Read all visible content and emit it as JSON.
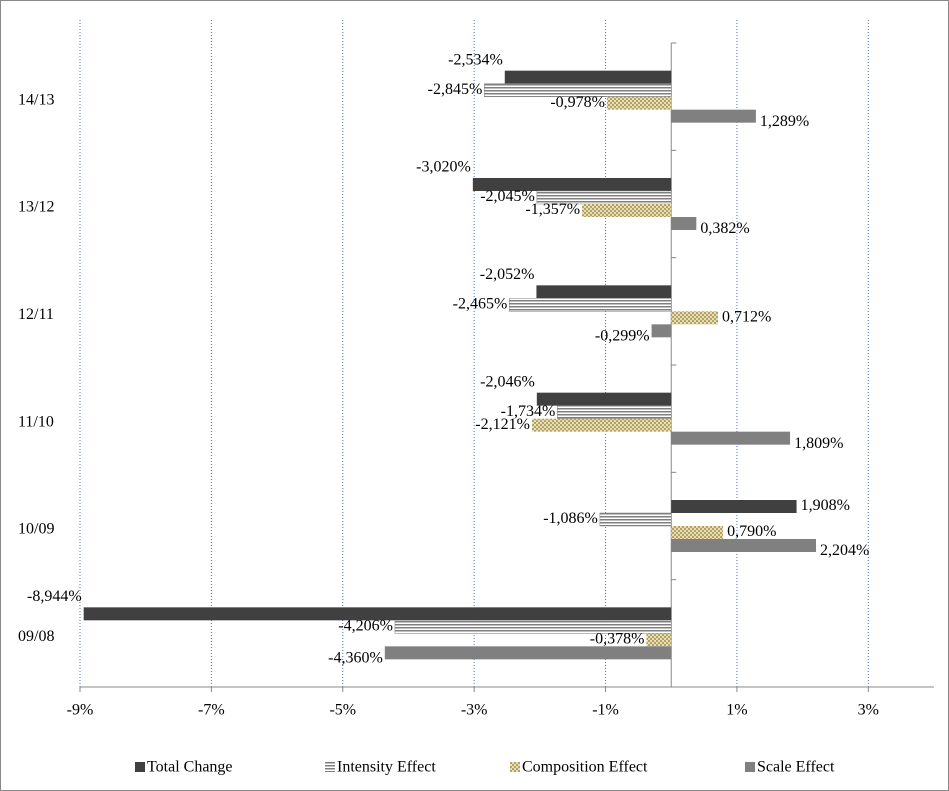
{
  "chart_data": {
    "type": "bar",
    "orientation": "horizontal",
    "categories": [
      "14/13",
      "13/12",
      "12/11",
      "11/10",
      "10/09",
      "09/08"
    ],
    "series": [
      {
        "name": "Total Change",
        "color": "#404040",
        "values": [
          -2.534,
          -3.02,
          -2.052,
          -2.046,
          1.908,
          -8.944
        ],
        "value_labels": [
          "-2,534%",
          "-3,020%",
          "-2,052%",
          "-2,046%",
          "1,908%",
          "-8,944%"
        ]
      },
      {
        "name": "Intensity Effect",
        "color": "#7f7f7f",
        "values": [
          -2.845,
          -2.045,
          -2.465,
          -1.734,
          -1.086,
          -4.206
        ],
        "value_labels": [
          "-2,845%",
          "-2,045%",
          "-2,465%",
          "-1,734%",
          "-1,086%",
          "-4,206%"
        ]
      },
      {
        "name": "Composition Effect",
        "color": "#b3a266",
        "values": [
          -0.978,
          -1.357,
          0.712,
          -2.121,
          0.79,
          -0.378
        ],
        "value_labels": [
          "-0,978%",
          "-1,357%",
          "0,712%",
          "-2,121%",
          "0,790%",
          "-0,378%"
        ]
      },
      {
        "name": "Scale Effect",
        "color": "#808080",
        "values": [
          1.289,
          0.382,
          -0.299,
          1.809,
          2.204,
          -4.36
        ],
        "value_labels": [
          "1,289%",
          "0,382%",
          "-0,299%",
          "1,809%",
          "2,204%",
          "-4,360%"
        ]
      }
    ],
    "xlim": [
      -9,
      4
    ],
    "xticks": [
      {
        "value": -9,
        "label": "-9%"
      },
      {
        "value": -7,
        "label": "-7%"
      },
      {
        "value": -5,
        "label": "-5%"
      },
      {
        "value": -3,
        "label": "-3%"
      },
      {
        "value": -1,
        "label": "-1%"
      },
      {
        "value": 1,
        "label": "1%"
      },
      {
        "value": 3,
        "label": "3%"
      }
    ],
    "grid": true,
    "legend": "bottom"
  }
}
